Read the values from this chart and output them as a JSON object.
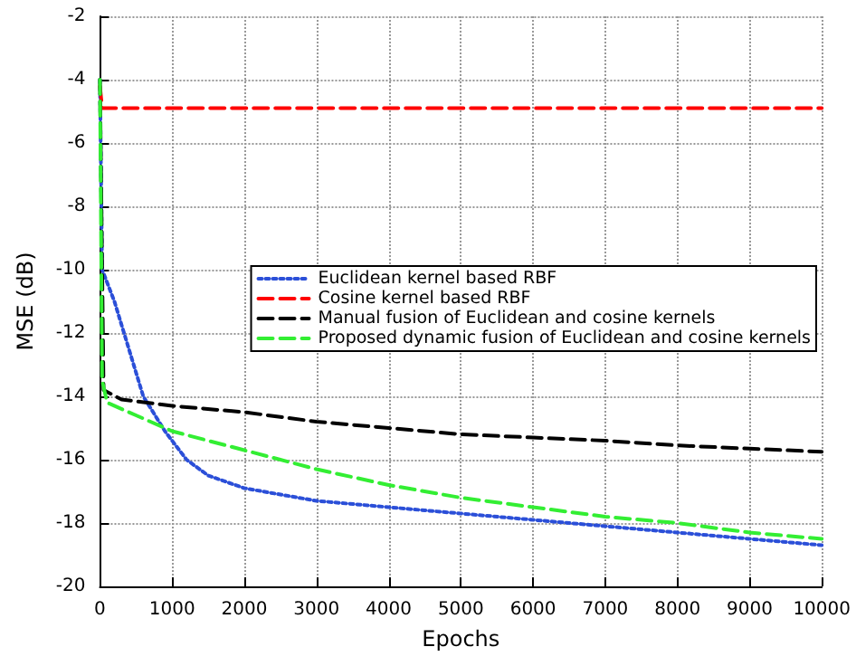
{
  "chart_data": {
    "type": "line",
    "xlabel": "Epochs",
    "ylabel": "MSE (dB)",
    "xlim": [
      0,
      10000
    ],
    "ylim": [
      -20,
      -2
    ],
    "xticks": [
      0,
      1000,
      2000,
      3000,
      4000,
      5000,
      6000,
      7000,
      8000,
      9000,
      10000
    ],
    "yticks": [
      -20,
      -18,
      -16,
      -14,
      -12,
      -10,
      -8,
      -6,
      -4,
      -2
    ],
    "grid": true,
    "legend": "right",
    "marker": "none",
    "series": [
      {
        "name": "Euclidean kernel based RBF",
        "color": "#2b4fd8",
        "line_style": "dotted",
        "x": [
          0,
          30,
          200,
          400,
          600,
          900,
          1200,
          1500,
          2000,
          2500,
          3000,
          4000,
          4500,
          5000,
          6000,
          7000,
          8000,
          9000,
          10000
        ],
        "values": [
          -4,
          -10,
          -11,
          -12.5,
          -14,
          -15.1,
          -16,
          -16.5,
          -16.9,
          -17.1,
          -17.3,
          -17.5,
          -17.6,
          -17.7,
          -17.9,
          -18.1,
          -18.3,
          -18.5,
          -18.7
        ]
      },
      {
        "name": "Cosine kernel based RBF",
        "color": "#ff0000",
        "line_style": "dashed",
        "x": [
          0,
          30,
          1000,
          2000,
          3000,
          4000,
          5000,
          6000,
          7000,
          8000,
          9000,
          10000
        ],
        "values": [
          -4.2,
          -4.9,
          -4.9,
          -4.9,
          -4.9,
          -4.9,
          -4.9,
          -4.9,
          -4.9,
          -4.9,
          -4.9,
          -4.9
        ]
      },
      {
        "name": "Manual fusion of Euclidean and cosine kernels",
        "color": "#000000",
        "line_style": "dashed",
        "x": [
          0,
          50,
          300,
          1000,
          2000,
          3000,
          4000,
          5000,
          6000,
          7000,
          8000,
          9000,
          10000
        ],
        "values": [
          -4,
          -13.8,
          -14.1,
          -14.3,
          -14.5,
          -14.8,
          -15,
          -15.2,
          -15.3,
          -15.4,
          -15.55,
          -15.65,
          -15.75
        ]
      },
      {
        "name": "Proposed dynamic fusion of Euclidean and cosine kernels",
        "color": "#33ee33",
        "line_style": "dashed",
        "x": [
          0,
          30,
          100,
          500,
          1000,
          2000,
          3000,
          4000,
          5000,
          6000,
          7000,
          8000,
          9000,
          10000
        ],
        "values": [
          -4,
          -13.5,
          -14.2,
          -14.6,
          -15.1,
          -15.7,
          -16.3,
          -16.8,
          -17.2,
          -17.5,
          -17.8,
          -18,
          -18.3,
          -18.5
        ]
      }
    ]
  }
}
